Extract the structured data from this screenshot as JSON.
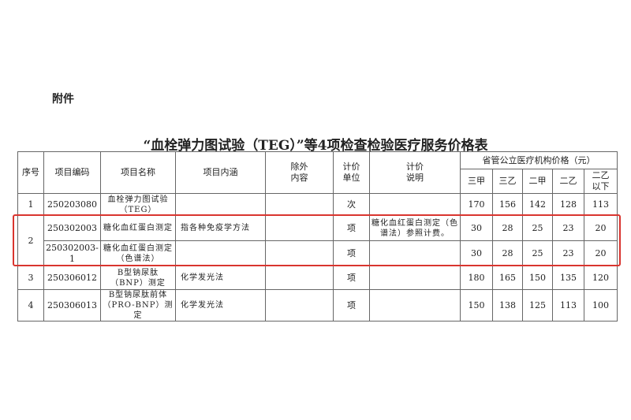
{
  "attachment_label": "附件",
  "title": "“血栓弹力图试验（TEG）”等4项检查检验医疗服务价格表",
  "headers": {
    "seq": "序号",
    "code": "项目编码",
    "name": "项目名称",
    "content": "项目内涵",
    "excluded": "除外内容",
    "unit": "计价单位",
    "note": "计价说明",
    "price_group": "省管公立医疗机构价格（元）",
    "levels": [
      "三甲",
      "三乙",
      "二甲",
      "二乙",
      "二乙以下"
    ]
  },
  "rows": [
    {
      "seq": "1",
      "code": "250203080",
      "name": "血栓弹力图试验（TEG）",
      "content": "",
      "excluded": "",
      "unit": "次",
      "note": "",
      "prices": [
        "170",
        "156",
        "142",
        "128",
        "113"
      ]
    },
    {
      "seq": "2",
      "code": "250302003",
      "name": "糖化血红蛋白测定",
      "content": "指各种免疫学方法",
      "excluded": "",
      "unit": "项",
      "note": "糖化血红蛋白测定（色谱法）参照计费。",
      "prices": [
        "30",
        "28",
        "25",
        "23",
        "20"
      ]
    },
    {
      "seq": "2",
      "code": "250302003-1",
      "name": "糖化血红蛋白测定（色谱法）",
      "content": "",
      "excluded": "",
      "unit": "项",
      "note": "",
      "prices": [
        "30",
        "28",
        "25",
        "23",
        "20"
      ]
    },
    {
      "seq": "3",
      "code": "250306012",
      "name": "B型钠尿肽（BNP）测定",
      "content": "化学发光法",
      "excluded": "",
      "unit": "项",
      "note": "",
      "prices": [
        "180",
        "165",
        "150",
        "135",
        "120"
      ]
    },
    {
      "seq": "4",
      "code": "250306013",
      "name": "B型钠尿肽前体（PRO-BNP）测定",
      "content": "化学发光法",
      "excluded": "",
      "unit": "项",
      "note": "",
      "prices": [
        "150",
        "138",
        "125",
        "113",
        "100"
      ]
    }
  ],
  "highlight_color": "#d9352f"
}
